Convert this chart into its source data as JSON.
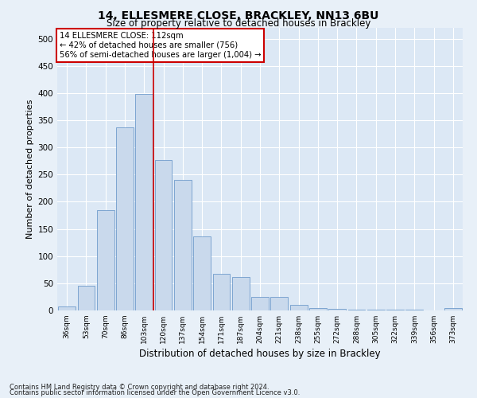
{
  "title1": "14, ELLESMERE CLOSE, BRACKLEY, NN13 6BU",
  "title2": "Size of property relative to detached houses in Brackley",
  "xlabel": "Distribution of detached houses by size in Brackley",
  "ylabel": "Number of detached properties",
  "categories": [
    "36sqm",
    "53sqm",
    "70sqm",
    "86sqm",
    "103sqm",
    "120sqm",
    "137sqm",
    "154sqm",
    "171sqm",
    "187sqm",
    "204sqm",
    "221sqm",
    "238sqm",
    "255sqm",
    "272sqm",
    "288sqm",
    "305sqm",
    "322sqm",
    "339sqm",
    "356sqm",
    "373sqm"
  ],
  "values": [
    8,
    46,
    184,
    337,
    398,
    277,
    240,
    136,
    68,
    62,
    25,
    25,
    10,
    5,
    3,
    2,
    1,
    1,
    1,
    0,
    4
  ],
  "bar_color": "#c9d9ec",
  "bar_edge_color": "#5b8ec4",
  "vline_x_index": 4.5,
  "vline_color": "#cc0000",
  "annotation_line1": "14 ELLESMERE CLOSE: 112sqm",
  "annotation_line2": "← 42% of detached houses are smaller (756)",
  "annotation_line3": "56% of semi-detached houses are larger (1,004) →",
  "annotation_box_color": "#ffffff",
  "annotation_box_edge": "#cc0000",
  "footnote1": "Contains HM Land Registry data © Crown copyright and database right 2024.",
  "footnote2": "Contains public sector information licensed under the Open Government Licence v3.0.",
  "bg_color": "#e8f0f8",
  "plot_bg_color": "#dce8f5",
  "ylim": [
    0,
    520
  ],
  "yticks": [
    0,
    50,
    100,
    150,
    200,
    250,
    300,
    350,
    400,
    450,
    500
  ],
  "title1_fontsize": 10,
  "title2_fontsize": 8.5,
  "xlabel_fontsize": 8.5,
  "ylabel_fontsize": 8,
  "xtick_fontsize": 6.5,
  "ytick_fontsize": 7.5,
  "annotation_fontsize": 7.2,
  "footnote_fontsize": 6.0
}
